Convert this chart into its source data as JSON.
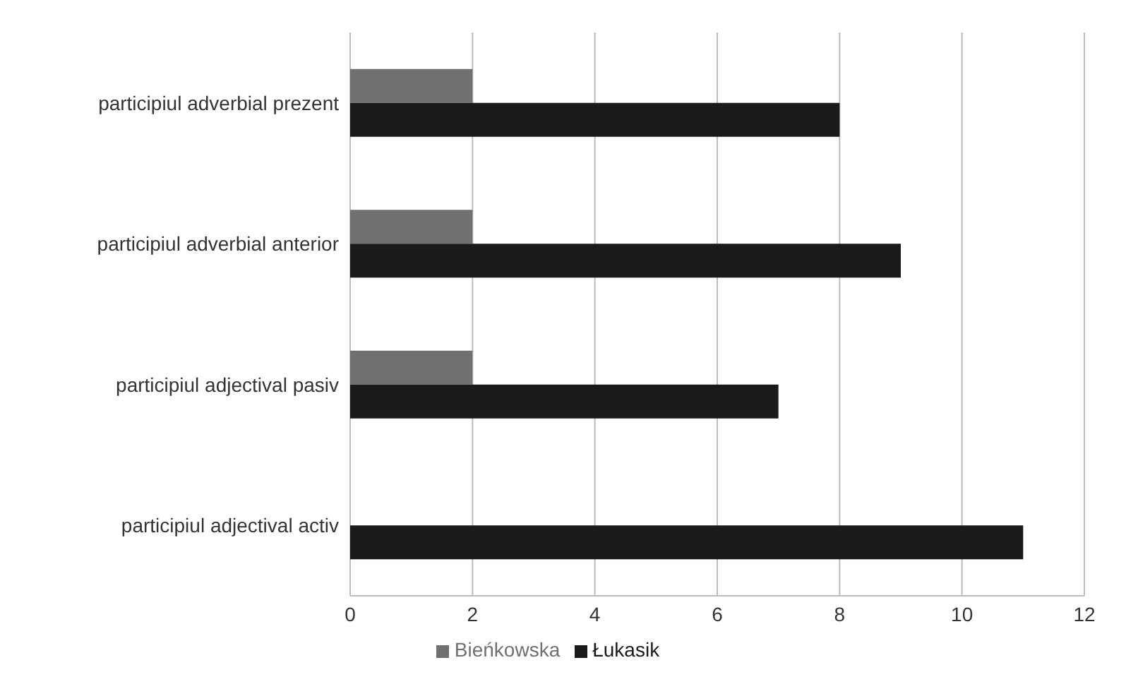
{
  "chart_data": {
    "type": "bar",
    "orientation": "horizontal",
    "categories": [
      "participiul adverbial prezent",
      "participiul adverbial anterior",
      "participiul adjectival pasiv",
      "participiul adjectival activ"
    ],
    "series": [
      {
        "name": "Bieńkowska",
        "color": "#707070",
        "values": [
          2,
          2,
          2,
          null
        ]
      },
      {
        "name": "Łukasik",
        "color": "#1a1a1a",
        "values": [
          8,
          9,
          7,
          11
        ]
      }
    ],
    "xlim": [
      0,
      12
    ],
    "xticks": [
      0,
      2,
      4,
      6,
      8,
      10,
      12
    ],
    "grid": true,
    "legend": "bottom"
  }
}
